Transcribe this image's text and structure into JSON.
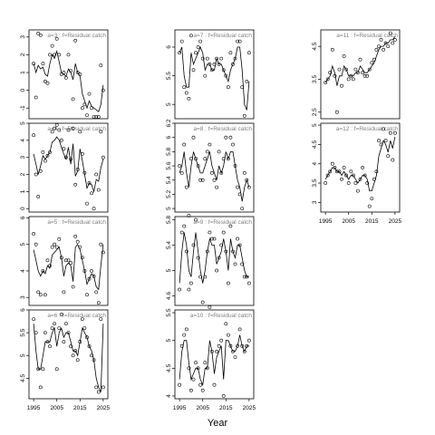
{
  "figure": {
    "xlabel": "Year"
  },
  "chart_data": [
    {
      "type": "scatter",
      "title": "a=3  :  f=Residual catch",
      "xlim": [
        1993,
        2027
      ],
      "ylim": [
        -1.6,
        3.4
      ],
      "yticks": [
        -1,
        0,
        1,
        2,
        3
      ],
      "xticks": [],
      "x": [
        1995,
        1996,
        1997,
        1998,
        1999,
        2000,
        2001,
        2002,
        2003,
        2004,
        2005,
        2006,
        2007,
        2008,
        2009,
        2010,
        2011,
        2012,
        2013,
        2014,
        2015,
        2016,
        2017,
        2018,
        2019,
        2020,
        2021,
        2022,
        2023,
        2024,
        2025
      ],
      "points": [
        1.5,
        -0.4,
        3.2,
        3.1,
        1.5,
        0.5,
        0.4,
        2.0,
        2.5,
        2.0,
        2.9,
        2.0,
        0.9,
        1.0,
        0.7,
        2.0,
        1.1,
        -0.5,
        2.8,
        1.0,
        0.9,
        -1.0,
        -0.8,
        -1.4,
        -0.2,
        -1.0,
        -1.5,
        -1.5,
        -1.5,
        1.4,
        0.0
      ],
      "fit": [
        1.5,
        1.0,
        1.4,
        1.2,
        1.3,
        0.9,
        0.8,
        1.5,
        2.0,
        1.8,
        2.2,
        1.6,
        1.0,
        0.9,
        0.8,
        1.2,
        1.0,
        0.6,
        1.5,
        1.0,
        0.8,
        -0.2,
        -0.6,
        -1.0,
        -0.6,
        -0.9,
        -1.0,
        -1.1,
        -1.2,
        -0.8,
        0.3
      ]
    },
    {
      "type": "scatter",
      "title": "a=4  :  f=Residual catch",
      "xlim": [
        1993,
        2027
      ],
      "ylim": [
        -0.2,
        5.0
      ],
      "yticks": [
        0,
        1,
        2,
        3,
        4,
        5
      ],
      "xticks": [],
      "x": [
        1995,
        1996,
        1997,
        1998,
        1999,
        2000,
        2001,
        2002,
        2003,
        2004,
        2005,
        2006,
        2007,
        2008,
        2009,
        2010,
        2011,
        2012,
        2013,
        2014,
        2015,
        2016,
        2017,
        2018,
        2019,
        2020,
        2021,
        2022,
        2023,
        2024,
        2025
      ],
      "points": [
        4.3,
        2.0,
        0.7,
        2.2,
        3.3,
        2.8,
        3.1,
        3.3,
        4.5,
        4.7,
        4.9,
        4.6,
        4.0,
        3.5,
        3.0,
        4.6,
        2.9,
        4.7,
        1.4,
        2.3,
        4.5,
        3.2,
        2.1,
        0.3,
        1.5,
        0.9,
        0.0,
        2.0,
        1.1,
        4.5,
        3.0
      ],
      "fit": [
        3.2,
        2.6,
        2.0,
        2.5,
        3.1,
        2.9,
        3.1,
        3.3,
        3.9,
        4.0,
        4.2,
        4.0,
        3.6,
        3.2,
        2.9,
        3.6,
        2.6,
        3.8,
        1.9,
        2.2,
        3.5,
        2.8,
        2.0,
        1.2,
        1.5,
        1.4,
        1.0,
        1.7,
        1.6,
        2.4,
        2.9
      ]
    },
    {
      "type": "scatter",
      "title": "a=5  :  f=Residual catch",
      "xlim": [
        1993,
        2027
      ],
      "ylim": [
        2.7,
        6.05
      ],
      "yticks": [
        3.0,
        4.0,
        5.0,
        6.0
      ],
      "xticks": [],
      "x": [
        1995,
        1996,
        1997,
        1998,
        1999,
        2000,
        2001,
        2002,
        2003,
        2004,
        2005,
        2006,
        2007,
        2008,
        2009,
        2010,
        2011,
        2012,
        2013,
        2014,
        2015,
        2016,
        2017,
        2018,
        2019,
        2020,
        2021,
        2022,
        2023,
        2024,
        2025
      ],
      "points": [
        5.4,
        5.0,
        3.2,
        3.1,
        4.0,
        3.1,
        4.4,
        4.2,
        4.9,
        5.0,
        4.9,
        5.2,
        4.5,
        3.2,
        4.4,
        4.4,
        4.3,
        3.4,
        5.3,
        5.1,
        4.9,
        4.5,
        4.0,
        3.1,
        3.7,
        4.0,
        3.8,
        3.2,
        2.8,
        5.0,
        4.7
      ],
      "fit": [
        4.8,
        4.4,
        4.0,
        3.8,
        4.0,
        3.9,
        4.2,
        4.1,
        4.6,
        4.7,
        4.8,
        4.9,
        4.5,
        3.8,
        4.2,
        4.3,
        4.2,
        3.6,
        4.9,
        5.0,
        4.8,
        4.4,
        4.0,
        3.5,
        3.7,
        3.9,
        3.8,
        3.4,
        3.3,
        4.2,
        5.0
      ]
    },
    {
      "type": "scatter",
      "title": "a=6  :  f=Residual catch",
      "xlim": [
        1993,
        2027
      ],
      "ylim": [
        4.05,
        6.0
      ],
      "yticks": [
        4.5,
        5.0,
        5.5,
        6.0
      ],
      "xticks": [
        1995,
        2005,
        2015,
        2025
      ],
      "x": [
        1995,
        1996,
        1997,
        1998,
        1999,
        2000,
        2001,
        2002,
        2003,
        2004,
        2005,
        2006,
        2007,
        2008,
        2009,
        2010,
        2011,
        2012,
        2013,
        2014,
        2015,
        2016,
        2017,
        2018,
        2019,
        2020,
        2021,
        2022,
        2023,
        2024,
        2025
      ],
      "points": [
        5.8,
        5.5,
        4.7,
        4.3,
        4.7,
        5.5,
        5.3,
        5.2,
        5.6,
        5.7,
        4.7,
        5.6,
        5.9,
        5.3,
        5.7,
        5.5,
        5.2,
        5.0,
        5.1,
        4.9,
        5.3,
        5.8,
        5.6,
        5.4,
        5.2,
        5.0,
        4.9,
        4.3,
        4.2,
        5.8,
        4.3
      ],
      "fit": [
        5.7,
        5.1,
        4.7,
        4.7,
        5.0,
        5.3,
        5.3,
        5.3,
        5.5,
        5.6,
        5.2,
        5.5,
        5.6,
        5.4,
        5.5,
        5.5,
        5.3,
        5.1,
        5.1,
        5.0,
        5.3,
        5.6,
        5.5,
        5.4,
        5.2,
        5.1,
        4.9,
        4.5,
        4.3,
        4.2,
        5.7
      ]
    },
    {
      "type": "scatter",
      "title": "a=7  :  f=Residual catch",
      "xlim": [
        1993,
        2027
      ],
      "ylim": [
        4.75,
        6.3
      ],
      "yticks": [
        5.0,
        5.5,
        6.0
      ],
      "xticks": [],
      "x": [
        1995,
        1996,
        1997,
        1998,
        1999,
        2000,
        2001,
        2002,
        2003,
        2004,
        2005,
        2006,
        2007,
        2008,
        2009,
        2010,
        2011,
        2012,
        2013,
        2014,
        2015,
        2016,
        2017,
        2018,
        2019,
        2020,
        2021,
        2022,
        2023,
        2024,
        2025
      ],
      "points": [
        5.9,
        6.1,
        5.3,
        5.2,
        5.1,
        6.2,
        5.6,
        5.9,
        6.0,
        6.1,
        5.8,
        5.5,
        5.8,
        5.7,
        5.6,
        5.7,
        5.8,
        5.7,
        5.8,
        5.6,
        5.5,
        5.3,
        5.9,
        5.7,
        5.8,
        6.1,
        6.1,
        5.3,
        4.8,
        5.4,
        5.9
      ],
      "fit": [
        5.9,
        6.0,
        5.5,
        5.3,
        5.3,
        5.9,
        5.7,
        5.8,
        5.9,
        6.0,
        5.9,
        5.6,
        5.7,
        5.7,
        5.6,
        5.6,
        5.8,
        5.7,
        5.7,
        5.6,
        5.5,
        5.4,
        5.6,
        5.7,
        5.8,
        6.0,
        6.0,
        5.6,
        5.0,
        4.9,
        5.4
      ]
    },
    {
      "type": "scatter",
      "title": "a=8  :  f=Residual catch",
      "xlim": [
        1993,
        2027
      ],
      "ylim": [
        4.95,
        6.2
      ],
      "yticks": [
        5.0,
        5.2,
        5.4,
        5.6,
        5.8,
        6.0,
        6.2
      ],
      "xticks": [],
      "x": [
        1995,
        1996,
        1997,
        1998,
        1999,
        2000,
        2001,
        2002,
        2003,
        2004,
        2005,
        2006,
        2007,
        2008,
        2009,
        2010,
        2011,
        2012,
        2013,
        2014,
        2015,
        2016,
        2017,
        2018,
        2019,
        2020,
        2021,
        2022,
        2023,
        2024,
        2025
      ],
      "points": [
        5.6,
        5.5,
        5.9,
        5.3,
        4.9,
        5.7,
        6.0,
        5.7,
        5.6,
        5.4,
        5.4,
        5.7,
        5.8,
        5.9,
        5.5,
        5.4,
        5.3,
        5.8,
        5.5,
        5.7,
        6.0,
        5.7,
        6.0,
        5.9,
        5.6,
        5.3,
        5.2,
        5.0,
        5.5,
        5.4,
        5.3
      ],
      "fit": [
        5.5,
        5.6,
        5.8,
        5.5,
        5.3,
        5.6,
        5.8,
        5.7,
        5.6,
        5.5,
        5.5,
        5.6,
        5.7,
        5.8,
        5.6,
        5.5,
        5.4,
        5.6,
        5.5,
        5.6,
        5.8,
        5.7,
        5.8,
        5.8,
        5.6,
        5.4,
        5.3,
        5.1,
        5.3,
        5.4,
        5.3
      ]
    },
    {
      "type": "scatter",
      "title": "a=9  :  f=Residual catch",
      "xlim": [
        1993,
        2027
      ],
      "ylim": [
        4.45,
        5.85
      ],
      "yticks": [
        4.6,
        5.0,
        5.4,
        5.8
      ],
      "xticks": [],
      "x": [
        1995,
        1996,
        1997,
        1998,
        1999,
        2000,
        2001,
        2002,
        2003,
        2004,
        2005,
        2006,
        2007,
        2008,
        2009,
        2010,
        2011,
        2012,
        2013,
        2014,
        2015,
        2016,
        2017,
        2018,
        2019,
        2020,
        2021,
        2022,
        2023,
        2024,
        2025
      ],
      "points": [
        4.7,
        5.6,
        5.7,
        5.3,
        4.7,
        4.8,
        5.4,
        5.8,
        5.2,
        4.9,
        4.5,
        4.9,
        5.3,
        5.6,
        5.5,
        5.5,
        5.0,
        5.2,
        5.4,
        5.6,
        5.3,
        4.8,
        5.7,
        5.3,
        5.1,
        5.5,
        5.4,
        5.1,
        4.9,
        4.9,
        4.8
      ],
      "fit": [
        4.8,
        5.3,
        5.6,
        5.4,
        5.0,
        4.9,
        5.3,
        5.6,
        5.3,
        5.0,
        4.8,
        5.0,
        5.3,
        5.5,
        5.4,
        5.4,
        5.1,
        5.2,
        5.3,
        5.5,
        5.3,
        5.0,
        5.5,
        5.3,
        5.2,
        5.4,
        5.4,
        5.2,
        5.0,
        4.9,
        4.9
      ]
    },
    {
      "type": "scatter",
      "title": "a=10  :  f=Residual catch",
      "xlim": [
        1993,
        2027
      ],
      "ylim": [
        3.95,
        5.55
      ],
      "yticks": [
        4.0,
        4.5,
        5.0,
        5.5
      ],
      "xticks": [
        1995,
        2005,
        2015,
        2025
      ],
      "x": [
        1995,
        1996,
        1997,
        1998,
        1999,
        2000,
        2001,
        2002,
        2003,
        2004,
        2005,
        2006,
        2007,
        2008,
        2009,
        2010,
        2011,
        2012,
        2013,
        2014,
        2015,
        2016,
        2017,
        2018,
        2019,
        2020,
        2021,
        2022,
        2023,
        2024,
        2025
      ],
      "points": [
        4.2,
        4.9,
        5.1,
        5.2,
        4.5,
        4.1,
        4.3,
        4.6,
        4.5,
        4.2,
        4.1,
        4.6,
        4.5,
        5.6,
        4.8,
        4.2,
        4.8,
        4.9,
        5.0,
        4.0,
        5.3,
        5.1,
        4.9,
        4.8,
        4.7,
        4.9,
        5.2,
        4.9,
        4.8,
        4.9,
        5.0
      ],
      "fit": [
        4.3,
        4.8,
        5.0,
        5.0,
        4.6,
        4.3,
        4.4,
        4.5,
        4.5,
        4.3,
        4.2,
        4.5,
        4.5,
        5.0,
        4.8,
        4.4,
        4.7,
        4.8,
        4.9,
        4.3,
        5.0,
        5.0,
        4.9,
        4.8,
        4.8,
        4.9,
        5.1,
        4.9,
        4.8,
        4.9,
        4.9
      ]
    },
    {
      "type": "scatter",
      "title": "a=11  :  f=Residual catch",
      "xlim": [
        1993,
        2027
      ],
      "ylim": [
        2.3,
        5.0
      ],
      "yticks": [
        2.5,
        3.5,
        4.5
      ],
      "xticks": [],
      "x": [
        1995,
        1996,
        1997,
        1998,
        1999,
        2000,
        2001,
        2002,
        2003,
        2004,
        2005,
        2006,
        2007,
        2008,
        2009,
        2010,
        2011,
        2012,
        2013,
        2014,
        2015,
        2016,
        2017,
        2018,
        2019,
        2020,
        2021,
        2022,
        2023,
        2024,
        2025
      ],
      "points": [
        3.4,
        3.5,
        3.7,
        4.4,
        3.6,
        2.5,
        3.8,
        3.3,
        4.2,
        3.8,
        3.5,
        3.6,
        3.5,
        3.8,
        3.7,
        4.1,
        3.7,
        3.6,
        3.6,
        3.8,
        4.0,
        4.1,
        4.4,
        4.5,
        4.7,
        4.4,
        4.6,
        4.5,
        4.9,
        4.6,
        4.7
      ],
      "fit": [
        3.4,
        3.5,
        3.6,
        3.9,
        3.7,
        3.3,
        3.6,
        3.6,
        3.9,
        3.8,
        3.6,
        3.6,
        3.6,
        3.7,
        3.7,
        3.9,
        3.8,
        3.7,
        3.7,
        3.8,
        3.9,
        4.0,
        4.2,
        4.4,
        4.5,
        4.5,
        4.6,
        4.6,
        4.7,
        4.7,
        4.8
      ]
    },
    {
      "type": "scatter",
      "title": "a=12  :  f=Residual catch",
      "xlim": [
        1993,
        2027
      ],
      "ylim": [
        2.75,
        5.05
      ],
      "yticks": [
        3.0,
        3.5,
        4.0,
        4.5,
        5.0
      ],
      "xticks": [
        1995,
        2005,
        2015,
        2025
      ],
      "x": [
        1995,
        1996,
        1997,
        1998,
        1999,
        2000,
        2001,
        2002,
        2003,
        2004,
        2005,
        2006,
        2007,
        2008,
        2009,
        2010,
        2011,
        2012,
        2013,
        2014,
        2015,
        2016,
        2017,
        2018,
        2019,
        2020,
        2021,
        2022,
        2023,
        2024,
        2025
      ],
      "points": [
        3.5,
        3.7,
        3.8,
        4.0,
        3.9,
        3.8,
        3.8,
        3.6,
        3.9,
        3.7,
        3.5,
        3.8,
        3.7,
        3.5,
        3.3,
        3.6,
        3.9,
        3.7,
        3.5,
        2.9,
        3.1,
        3.6,
        3.8,
        4.6,
        4.5,
        4.9,
        4.6,
        4.2,
        4.8,
        4.1,
        4.8
      ],
      "fit": [
        3.6,
        3.7,
        3.8,
        3.9,
        3.9,
        3.8,
        3.8,
        3.7,
        3.8,
        3.7,
        3.6,
        3.7,
        3.7,
        3.6,
        3.5,
        3.6,
        3.7,
        3.7,
        3.6,
        3.3,
        3.3,
        3.5,
        3.7,
        4.2,
        4.4,
        4.6,
        4.5,
        4.3,
        4.6,
        4.4,
        4.7
      ]
    }
  ]
}
